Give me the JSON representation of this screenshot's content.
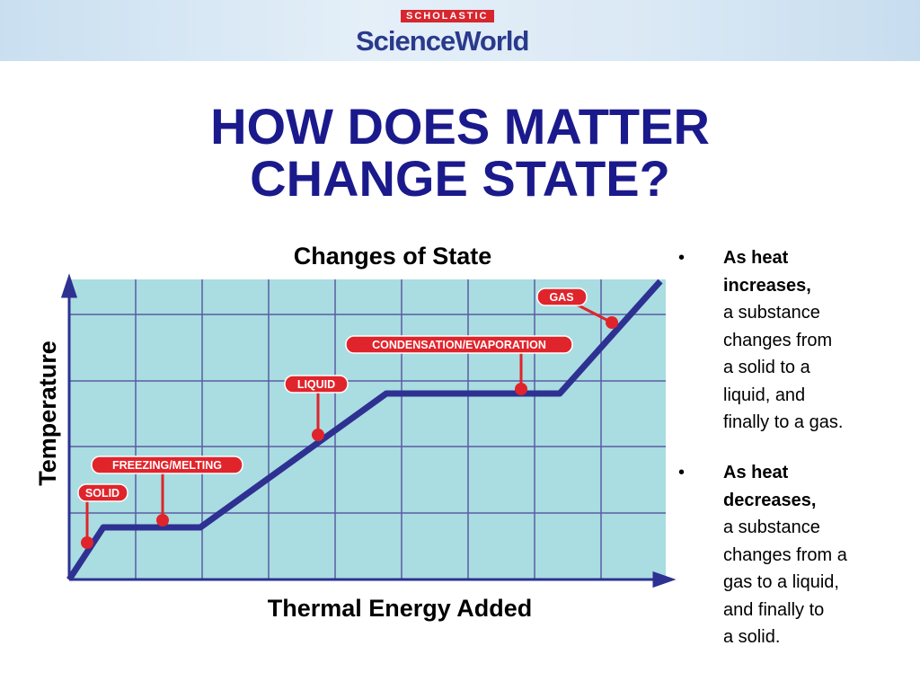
{
  "header": {
    "brand": "SCHOLASTIC",
    "logo": "ScienceWorld"
  },
  "title": [
    "HOW DOES MATTER",
    "CHANGE STATE?"
  ],
  "diagram": {
    "title": "Changes of State",
    "y_label": "Temperature",
    "x_label": "Thermal Energy Added",
    "labels": [
      "SOLID",
      "FREEZING/MELTING",
      "LIQUID",
      "CONDENSATION/EVAPORATION",
      "GAS"
    ]
  },
  "bullets": [
    {
      "marker": "•",
      "bold": [
        "As heat",
        "increases,"
      ],
      "lines": [
        "a substance",
        "changes from",
        "a solid to a",
        "liquid, and",
        "finally to a gas."
      ]
    },
    {
      "marker": "•",
      "bold": [
        "As heat",
        "decreases,"
      ],
      "lines": [
        "a substance",
        "changes from a",
        "gas to a liquid,",
        "and finally to",
        "a solid."
      ]
    }
  ]
}
